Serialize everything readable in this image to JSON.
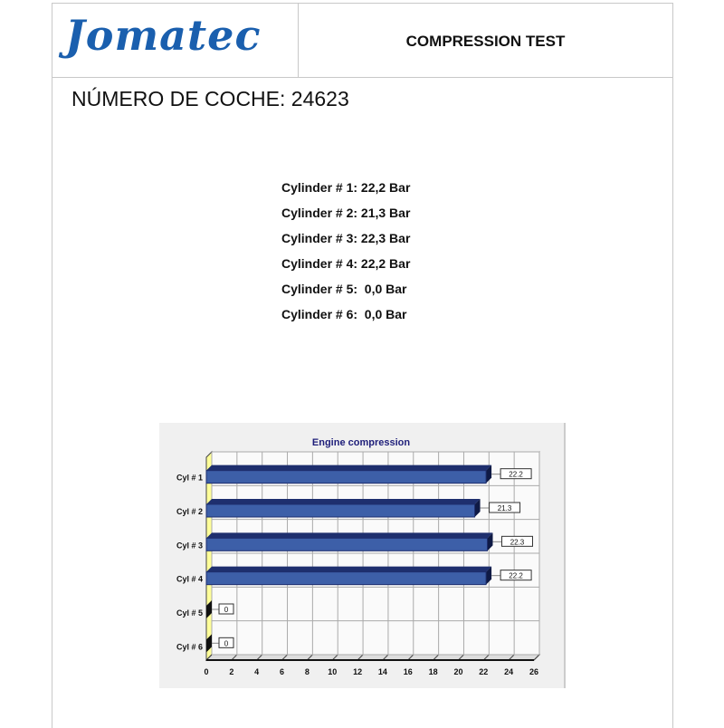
{
  "header": {
    "logo": "Jomatec",
    "title": "COMPRESSION TEST"
  },
  "car_number_label": "NÚMERO DE COCHE: 24623",
  "results": [
    "Cylinder # 1: 22,2 Bar",
    "Cylinder # 2: 21,3 Bar",
    "Cylinder # 3: 22,3 Bar",
    "Cylinder # 4: 22,2 Bar",
    "Cylinder # 5:  0,0 Bar",
    "Cylinder # 6:  0,0 Bar"
  ],
  "chart_data": {
    "type": "bar",
    "orientation": "horizontal",
    "title": "Engine compression",
    "categories": [
      "Cyl # 1",
      "Cyl # 2",
      "Cyl # 3",
      "Cyl # 4",
      "Cyl # 5",
      "Cyl # 6"
    ],
    "values": [
      22.2,
      21.3,
      22.3,
      22.2,
      0,
      0
    ],
    "data_labels": [
      "22.2",
      "21.3",
      "22.3",
      "22.2",
      "0",
      "0"
    ],
    "xlim": [
      0,
      26
    ],
    "xticks": [
      0,
      2,
      4,
      6,
      8,
      10,
      12,
      14,
      16,
      18,
      20,
      22,
      24,
      26
    ],
    "grid": true,
    "colors": {
      "bar": "#3d5fa8",
      "bar_top": "#1e2f6e",
      "title": "#1f1f7a",
      "wall": "#ffff99"
    }
  }
}
